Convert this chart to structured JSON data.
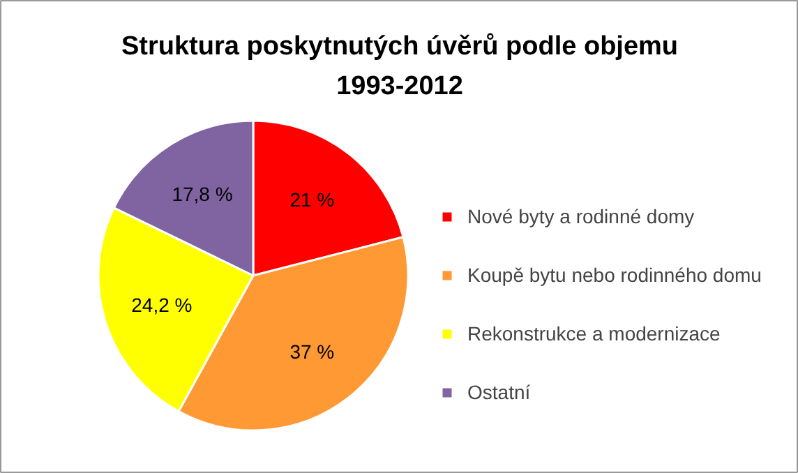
{
  "chart_data": {
    "type": "pie",
    "title": "Struktura poskytnutých úvěrů podle objemu 1993-2012",
    "categories": [
      "Nové byty a rodinné domy",
      "Koupě bytu nebo rodinného domu",
      "Rekonstrukce a modernizace",
      "Ostatní"
    ],
    "values": [
      21,
      37,
      24.2,
      17.8
    ],
    "colors": [
      "#ff0000",
      "#ff9933",
      "#ffff00",
      "#8064a2"
    ],
    "value_labels": [
      "21 %",
      "37 %",
      "24,2 %",
      "17,8 %"
    ],
    "legend": "right"
  }
}
